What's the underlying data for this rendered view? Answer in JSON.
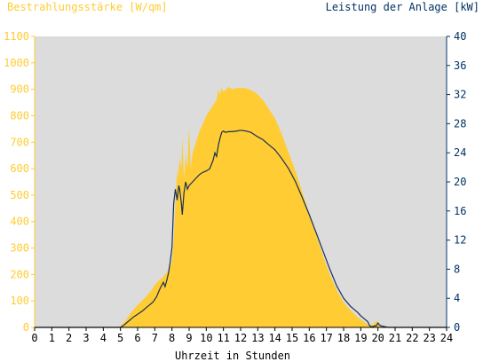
{
  "chart_data": {
    "type": "area",
    "left_axis_title": "Bestrahlungsstärke [W/qm]",
    "right_axis_title": "Leistung der Anlage [kW]",
    "xlabel": "Uhrzeit in Stunden",
    "xlim": [
      0,
      24
    ],
    "ylim_left": [
      0,
      1100
    ],
    "ylim_right": [
      0,
      40
    ],
    "x_ticks": [
      "0",
      "1",
      "2",
      "3",
      "4",
      "5",
      "6",
      "7",
      "8",
      "9",
      "10",
      "11",
      "12",
      "13",
      "14",
      "15",
      "16",
      "17",
      "18",
      "19",
      "20",
      "21",
      "22",
      "23",
      "24"
    ],
    "y_left_ticks": [
      "0",
      "100",
      "200",
      "300",
      "400",
      "500",
      "600",
      "700",
      "800",
      "900",
      "1000",
      "1100"
    ],
    "y_right_ticks": [
      "0",
      "4",
      "8",
      "12",
      "16",
      "20",
      "24",
      "28",
      "32",
      "36",
      "40"
    ],
    "grid": false,
    "colors": {
      "left_axis": "#ffcc33",
      "right_axis": "#003366",
      "area_fill": "#ffcc33",
      "plot_bg": "#dcdcdc",
      "line": "#1a2f55"
    },
    "series": [
      {
        "axis": "left",
        "style": "area",
        "x": [
          0,
          4.8,
          5.0,
          5.3,
          5.6,
          6.0,
          6.4,
          6.8,
          7.0,
          7.2,
          7.4,
          7.6,
          7.8,
          8.0,
          8.1,
          8.2,
          8.3,
          8.35,
          8.45,
          8.55,
          8.6,
          8.7,
          8.8,
          8.9,
          9.0,
          9.1,
          9.2,
          9.4,
          9.6,
          9.8,
          10.0,
          10.2,
          10.4,
          10.6,
          10.7,
          10.8,
          10.9,
          11.0,
          11.1,
          11.3,
          11.5,
          11.8,
          12.0,
          12.2,
          12.5,
          12.8,
          13.0,
          13.3,
          13.6,
          14.0,
          14.4,
          14.8,
          15.2,
          15.6,
          16.0,
          16.4,
          16.8,
          17.2,
          17.6,
          18.0,
          18.4,
          18.8,
          19.0,
          19.2,
          19.3,
          19.4,
          19.5,
          19.6,
          19.7,
          19.8,
          19.9,
          20.0,
          20.1,
          20.3,
          20.5,
          20.7,
          21.0,
          24
        ],
        "y": [
          0,
          0,
          5,
          25,
          55,
          85,
          110,
          140,
          160,
          175,
          185,
          200,
          215,
          250,
          330,
          470,
          600,
          560,
          640,
          600,
          720,
          560,
          650,
          600,
          760,
          600,
          660,
          700,
          740,
          770,
          800,
          820,
          840,
          860,
          900,
          880,
          905,
          890,
          895,
          910,
          900,
          905,
          905,
          905,
          900,
          890,
          880,
          860,
          830,
          790,
          730,
          660,
          590,
          510,
          430,
          350,
          270,
          200,
          140,
          95,
          65,
          40,
          30,
          20,
          15,
          12,
          10,
          10,
          10,
          15,
          25,
          18,
          10,
          5,
          2,
          0,
          0,
          0
        ]
      },
      {
        "axis": "right",
        "style": "line",
        "x": [
          0,
          5.0,
          5.2,
          5.5,
          5.8,
          6.0,
          6.3,
          6.6,
          6.9,
          7.1,
          7.3,
          7.5,
          7.6,
          7.7,
          7.8,
          7.9,
          8.0,
          8.1,
          8.2,
          8.3,
          8.4,
          8.45,
          8.55,
          8.6,
          8.7,
          8.8,
          8.9,
          9.0,
          9.2,
          9.4,
          9.6,
          9.8,
          10.0,
          10.2,
          10.4,
          10.5,
          10.6,
          10.7,
          10.8,
          10.9,
          11.0,
          11.1,
          11.3,
          11.5,
          11.8,
          12.0,
          12.3,
          12.6,
          12.8,
          13.0,
          13.3,
          13.6,
          14.0,
          14.4,
          14.8,
          15.2,
          15.6,
          16.0,
          16.4,
          16.8,
          17.2,
          17.6,
          18.0,
          18.4,
          18.8,
          19.0,
          19.2,
          19.4,
          19.5,
          19.6,
          19.7,
          19.8,
          19.9,
          20.0,
          20.1,
          20.2,
          20.4,
          20.6,
          21.0,
          24
        ],
        "y": [
          0,
          0,
          0.3,
          0.9,
          1.5,
          1.8,
          2.3,
          2.9,
          3.5,
          4.2,
          5.3,
          6.2,
          5.6,
          6.5,
          7.5,
          9.0,
          11.0,
          17.0,
          19.0,
          17.5,
          19.5,
          19.0,
          17.0,
          15.5,
          18.5,
          20.0,
          19.0,
          19.5,
          20.0,
          20.5,
          21.0,
          21.3,
          21.5,
          21.8,
          23.0,
          24.0,
          23.5,
          25.0,
          26.0,
          26.8,
          27.0,
          26.8,
          26.9,
          26.9,
          27.0,
          27.1,
          27.0,
          26.8,
          26.5,
          26.2,
          25.8,
          25.2,
          24.4,
          23.2,
          21.8,
          20.0,
          17.8,
          15.5,
          13.0,
          10.5,
          8.0,
          5.7,
          4.0,
          2.9,
          2.1,
          1.6,
          1.2,
          0.8,
          0.3,
          0.1,
          0.1,
          0.2,
          0.2,
          0.6,
          0.3,
          0.2,
          0.1,
          0,
          0,
          0
        ]
      }
    ]
  }
}
